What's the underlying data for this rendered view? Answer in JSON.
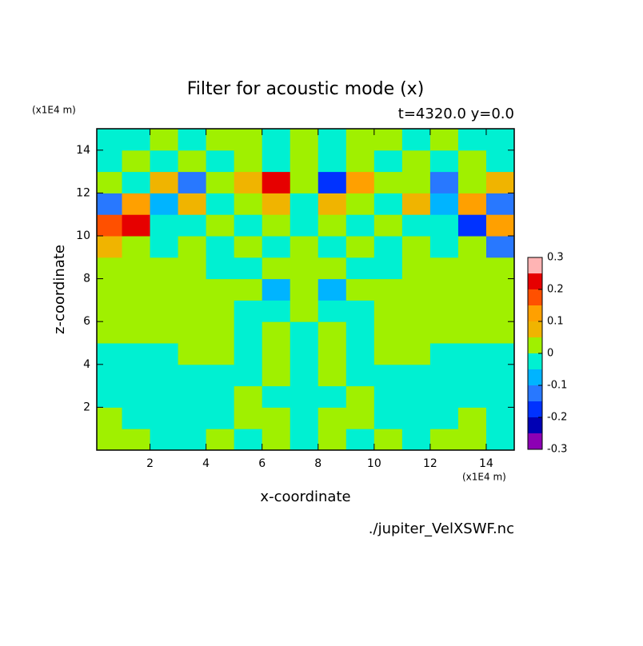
{
  "chart_data": {
    "type": "contour",
    "title": "Filter for acoustic mode (x)",
    "subtitle": "t=4320.0 y=0.0",
    "x_label": "x-coordinate",
    "y_label": "z-coordinate",
    "x_unit": "(x1E4 m)",
    "y_unit": "(x1E4 m)",
    "source": "./jupiter_VelXSWF.nc",
    "xlim": [
      0.1,
      15
    ],
    "ylim": [
      0,
      15
    ],
    "xticks": [
      2,
      4,
      6,
      8,
      10,
      12,
      14
    ],
    "yticks": [
      2,
      4,
      6,
      8,
      10,
      12,
      14
    ],
    "levels": [
      -0.3,
      -0.25,
      -0.2,
      -0.15,
      -0.1,
      -0.05,
      0,
      0.05,
      0.1,
      0.15,
      0.2,
      0.25,
      0.3
    ],
    "colors": [
      "#8c00b4",
      "#0000b4",
      "#0032ff",
      "#2878ff",
      "#00b4ff",
      "#00f0d2",
      "#a0f000",
      "#f0b400",
      "#ffa000",
      "#ff5000",
      "#e60000",
      "#ffb4b4"
    ],
    "colorbar_ticks": [
      0.3,
      0.2,
      0.1,
      0,
      -0.1,
      -0.2,
      -0.3
    ],
    "field": {
      "x": [
        0.5,
        1.5,
        2.5,
        3.5,
        4.5,
        5.5,
        6.5,
        7.5,
        8.5,
        9.5,
        10.5,
        11.5,
        12.5,
        13.5,
        14.5
      ],
      "z": [
        0.5,
        1.5,
        2.5,
        3.5,
        4.5,
        5.5,
        6.5,
        7.5,
        8.5,
        9.5,
        10.5,
        11.5,
        12.5,
        13.5,
        14.5
      ],
      "values": [
        [
          0.02,
          0.02,
          -0.02,
          -0.02,
          0.02,
          -0.02,
          0.02,
          -0.02,
          0.02,
          -0.02,
          0.02,
          -0.02,
          0.02,
          0.02,
          -0.02
        ],
        [
          0.02,
          -0.02,
          -0.02,
          -0.02,
          -0.02,
          0.02,
          0.02,
          -0.02,
          0.02,
          0.02,
          -0.02,
          -0.02,
          -0.02,
          0.02,
          -0.02
        ],
        [
          -0.02,
          -0.02,
          -0.02,
          -0.02,
          -0.02,
          0.02,
          -0.02,
          -0.02,
          -0.02,
          0.02,
          -0.02,
          -0.02,
          -0.02,
          -0.02,
          -0.02
        ],
        [
          -0.02,
          -0.02,
          -0.02,
          -0.02,
          -0.02,
          -0.02,
          0.02,
          -0.02,
          0.02,
          -0.02,
          -0.02,
          -0.02,
          -0.02,
          -0.02,
          -0.02
        ],
        [
          -0.02,
          -0.02,
          -0.02,
          0.02,
          0.02,
          -0.02,
          0.02,
          -0.02,
          0.02,
          -0.02,
          0.02,
          0.02,
          -0.02,
          -0.02,
          -0.02
        ],
        [
          0.02,
          0.02,
          0.02,
          0.02,
          0.02,
          -0.02,
          0.02,
          -0.02,
          0.02,
          -0.02,
          0.02,
          0.02,
          0.02,
          0.02,
          0.02
        ],
        [
          0.02,
          0.02,
          0.02,
          0.02,
          0.02,
          -0.02,
          -0.02,
          0.02,
          -0.02,
          -0.02,
          0.02,
          0.02,
          0.02,
          0.02,
          0.02
        ],
        [
          0.02,
          0.02,
          0.02,
          0.02,
          0.02,
          0.02,
          -0.07,
          0.02,
          -0.07,
          0.02,
          0.02,
          0.02,
          0.02,
          0.02,
          0.02
        ],
        [
          0.02,
          0.02,
          0.02,
          0.02,
          -0.02,
          -0.02,
          0.02,
          0.02,
          0.02,
          -0.02,
          -0.02,
          0.02,
          0.02,
          0.02,
          0.02
        ],
        [
          0.07,
          0.02,
          -0.02,
          0.02,
          -0.02,
          0.02,
          -0.02,
          0.02,
          -0.02,
          0.02,
          -0.02,
          0.02,
          -0.02,
          0.02,
          -0.12
        ],
        [
          0.17,
          0.22,
          -0.02,
          -0.02,
          0.02,
          -0.02,
          0.02,
          -0.02,
          0.02,
          -0.02,
          0.02,
          -0.02,
          -0.02,
          -0.17,
          0.12
        ],
        [
          -0.12,
          0.12,
          -0.07,
          0.07,
          -0.02,
          0.02,
          0.07,
          -0.02,
          0.07,
          0.02,
          -0.02,
          0.07,
          -0.07,
          0.12,
          -0.12
        ],
        [
          0.02,
          -0.02,
          0.07,
          -0.12,
          0.02,
          0.07,
          0.22,
          0.02,
          -0.17,
          0.12,
          0.02,
          0.02,
          -0.12,
          0.02,
          0.07
        ],
        [
          -0.02,
          0.02,
          -0.02,
          0.02,
          -0.02,
          0.02,
          -0.02,
          0.02,
          -0.02,
          0.02,
          -0.02,
          0.02,
          -0.02,
          0.02,
          -0.02
        ],
        [
          -0.02,
          -0.02,
          0.02,
          -0.02,
          0.02,
          0.02,
          -0.02,
          0.02,
          -0.02,
          0.02,
          0.02,
          -0.02,
          0.02,
          -0.02,
          -0.02
        ]
      ]
    }
  }
}
